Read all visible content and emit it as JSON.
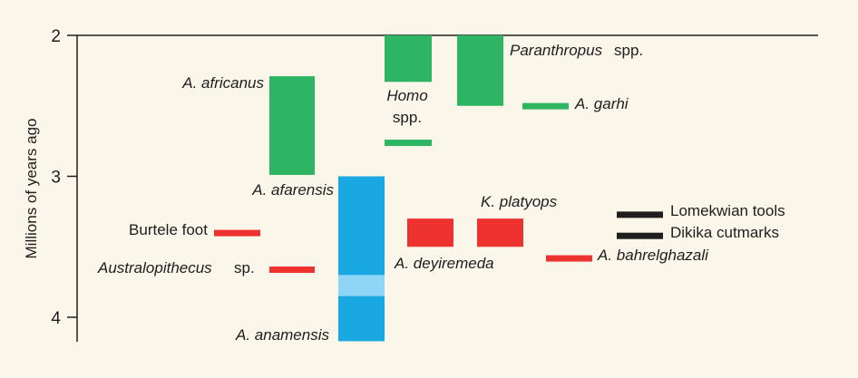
{
  "chart_data": {
    "type": "range-bar",
    "ylabel": "Millions of years ago",
    "yticks": [
      2,
      3,
      4
    ],
    "ylim": [
      2,
      4.17
    ],
    "y_reversed": true,
    "grid": false,
    "colors": {
      "green": "#2db563",
      "blue": "#1aa8e2",
      "lightblue": "#8fd5f5",
      "red": "#ee3230",
      "black": "#1e1e1e"
    },
    "ranges": [
      {
        "name": "africanus-bar",
        "color": "green",
        "col": 0,
        "from": 2.29,
        "to": 2.99
      },
      {
        "name": "homo-bar",
        "color": "green",
        "col": 1,
        "from": 2.0,
        "to": 2.33
      },
      {
        "name": "homo-early-bar",
        "color": "green",
        "col": 1,
        "from": 2.74,
        "to": 2.77,
        "kind": "line"
      },
      {
        "name": "paranthropus-bar",
        "color": "green",
        "col": 2,
        "from": 2.0,
        "to": 2.5
      },
      {
        "name": "garhi-bar",
        "color": "green",
        "col": 3,
        "from": 2.48,
        "to": 2.51,
        "kind": "line"
      },
      {
        "name": "afarensis-bar",
        "color": "blue",
        "col": 4,
        "from": 3.0,
        "to": 4.17
      },
      {
        "name": "anamensis-overlap-band",
        "color": "lightblue",
        "col": 4,
        "from": 3.7,
        "to": 3.85
      },
      {
        "name": "burtele-foot-bar",
        "color": "red",
        "col": 5,
        "from": 3.38,
        "to": 3.41,
        "kind": "line"
      },
      {
        "name": "australopithecus-sp-bar",
        "color": "red",
        "col": 6,
        "from": 3.64,
        "to": 3.67,
        "kind": "line"
      },
      {
        "name": "deyiremeda-bar",
        "color": "red",
        "col": 7,
        "from": 3.3,
        "to": 3.5
      },
      {
        "name": "platyops-bar",
        "color": "red",
        "col": 8,
        "from": 3.3,
        "to": 3.5
      },
      {
        "name": "bahrelghazali-bar",
        "color": "red",
        "col": 9,
        "from": 3.56,
        "to": 3.59,
        "kind": "line"
      },
      {
        "name": "lomekwian-tools-bar",
        "color": "black",
        "col": 10,
        "from": 3.25,
        "to": 3.28,
        "kind": "line"
      },
      {
        "name": "dikika-cutmarks-bar",
        "color": "black",
        "col": 10,
        "from": 3.4,
        "to": 3.43,
        "kind": "line"
      }
    ],
    "labels": [
      {
        "name": "label-a-africanus",
        "text": "A. africanus",
        "italic": true
      },
      {
        "name": "label-homo",
        "text": "Homo",
        "italic": true
      },
      {
        "name": "label-spp",
        "text": "spp.",
        "italic": false
      },
      {
        "name": "label-paranthropus",
        "text": "Paranthropus",
        "italic": true
      },
      {
        "name": "label-paranthropus-spp",
        "text": " spp.",
        "italic": false
      },
      {
        "name": "label-a-garhi",
        "text": "A. garhi",
        "italic": true
      },
      {
        "name": "label-a-afarensis",
        "text": "A. afarensis",
        "italic": true
      },
      {
        "name": "label-k-platyops",
        "text": "K. platyops",
        "italic": true
      },
      {
        "name": "label-lomekwian-tools",
        "text": "Lomekwian tools",
        "italic": false
      },
      {
        "name": "label-burtele-foot",
        "text": "Burtele foot",
        "italic": false
      },
      {
        "name": "label-dikika-cutmarks",
        "text": "Dikika cutmarks",
        "italic": false
      },
      {
        "name": "label-australopithecus",
        "text": "Australopithecus",
        "italic": true
      },
      {
        "name": "label-australopithecus-sp",
        "text": " sp.",
        "italic": false
      },
      {
        "name": "label-a-deyiremeda",
        "text": "A. deyiremeda",
        "italic": true
      },
      {
        "name": "label-a-bahrelghazali",
        "text": "A. bahrelghazali",
        "italic": true
      },
      {
        "name": "label-a-anamensis",
        "text": "A. anamensis",
        "italic": true
      }
    ]
  }
}
